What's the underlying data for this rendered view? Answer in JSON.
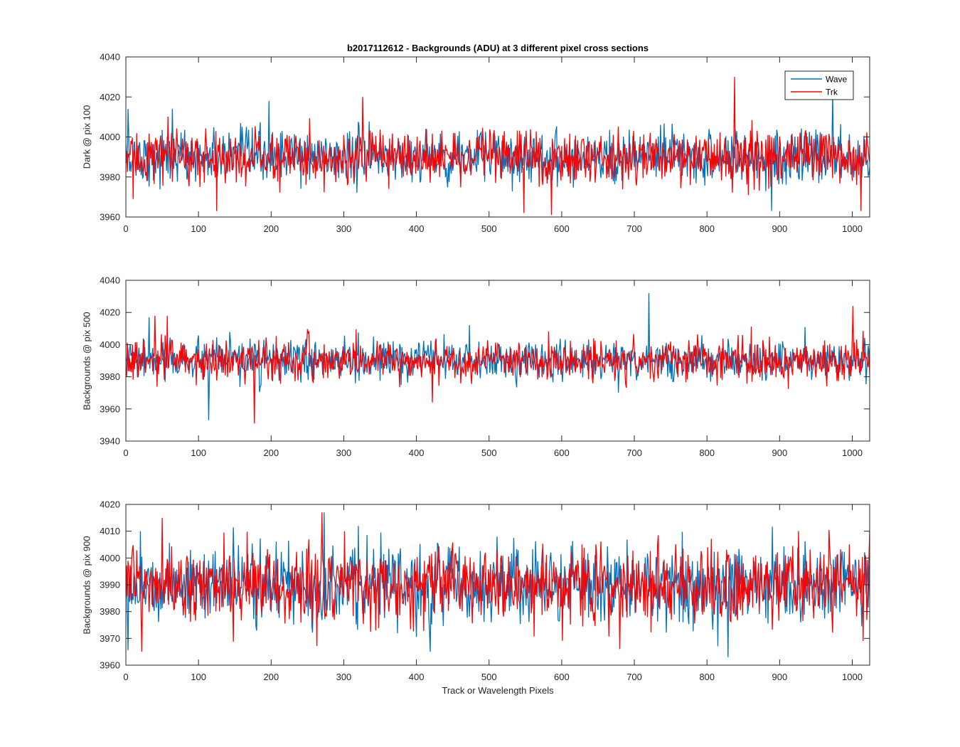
{
  "chart_data": [
    {
      "type": "line",
      "title": "b2017112612 - Backgrounds (ADU) at 3 different pixel cross sections",
      "xlabel": "",
      "ylabel": "Dark @ pix 100",
      "xlim": [
        0,
        1024
      ],
      "ylim": [
        3960,
        4040
      ],
      "xticks": [
        0,
        100,
        200,
        300,
        400,
        500,
        600,
        700,
        800,
        900,
        1000
      ],
      "yticks": [
        3960,
        3980,
        4000,
        4020,
        4040
      ],
      "legend": {
        "placement": "top-right",
        "entries": [
          "Wave",
          "Trk"
        ]
      },
      "grid": false,
      "series": [
        {
          "name": "Wave",
          "color": "#0072BD",
          "mean": 3990,
          "spread": 6.5,
          "extremes": [
            [
              3,
              4014
            ],
            [
              64,
              4014
            ],
            [
              197,
              4018
            ],
            [
              889,
              3963
            ],
            [
              973,
              4022
            ]
          ]
        },
        {
          "name": "Trk",
          "color": "#FF0000",
          "mean": 3990,
          "spread": 6.5,
          "extremes": [
            [
              10,
              3969
            ],
            [
              125,
              3963
            ],
            [
              326,
              4020
            ],
            [
              548,
              3962
            ],
            [
              586,
              3961
            ],
            [
              838,
              4030
            ],
            [
              1012,
              3963
            ]
          ]
        }
      ]
    },
    {
      "type": "line",
      "title": "",
      "xlabel": "",
      "ylabel": "Backgrounds @ pix 500",
      "xlim": [
        0,
        1024
      ],
      "ylim": [
        3940,
        4040
      ],
      "xticks": [
        0,
        100,
        200,
        300,
        400,
        500,
        600,
        700,
        800,
        900,
        1000
      ],
      "yticks": [
        3940,
        3960,
        3980,
        4000,
        4020,
        4040
      ],
      "grid": false,
      "series": [
        {
          "name": "Wave",
          "color": "#0072BD",
          "mean": 3990,
          "spread": 6,
          "extremes": [
            [
              114,
              3953
            ],
            [
              720,
              4032
            ],
            [
              32,
              4017
            ]
          ]
        },
        {
          "name": "Trk",
          "color": "#FF0000",
          "mean": 3990,
          "spread": 6,
          "extremes": [
            [
              177,
              3951
            ],
            [
              1001,
              4024
            ],
            [
              57,
              4018
            ],
            [
              40,
              4018
            ],
            [
              422,
              3964
            ]
          ]
        }
      ]
    },
    {
      "type": "line",
      "title": "",
      "xlabel": "Track or Wavelength Pixels",
      "ylabel": "Backgrounds @ pix 900",
      "xlim": [
        0,
        1024
      ],
      "ylim": [
        3960,
        4020
      ],
      "xticks": [
        0,
        100,
        200,
        300,
        400,
        500,
        600,
        700,
        800,
        900,
        1000
      ],
      "yticks": [
        3960,
        3970,
        3980,
        3990,
        4000,
        4010,
        4020
      ],
      "grid": false,
      "series": [
        {
          "name": "Wave",
          "color": "#0072BD",
          "mean": 3990,
          "spread": 7,
          "extremes": [
            [
              829,
              3963
            ],
            [
              419,
              3965
            ],
            [
              273,
              4017
            ],
            [
              20,
              4010
            ]
          ]
        },
        {
          "name": "Trk",
          "color": "#FF0000",
          "mean": 3990,
          "spread": 7,
          "extremes": [
            [
              270,
              4017
            ],
            [
              22,
              3965
            ],
            [
              50,
              4015
            ],
            [
              680,
              3966
            ],
            [
              1015,
              3969
            ]
          ]
        }
      ]
    }
  ]
}
